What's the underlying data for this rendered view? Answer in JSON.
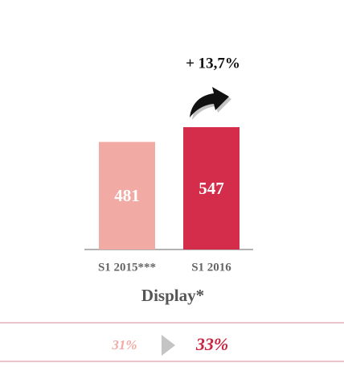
{
  "chart_data": {
    "type": "bar",
    "title": "Display*",
    "annotation": "+ 13,7%",
    "categories": [
      "S1 2015***",
      "S1 2016"
    ],
    "values": [
      481,
      547
    ],
    "colors": [
      "#f2aaa5",
      "#d42d4b"
    ],
    "shares": {
      "values": [
        31,
        33
      ],
      "value_labels": [
        "31%",
        "33%"
      ],
      "colors": [
        "#f2aaa5",
        "#c8243f"
      ]
    }
  }
}
